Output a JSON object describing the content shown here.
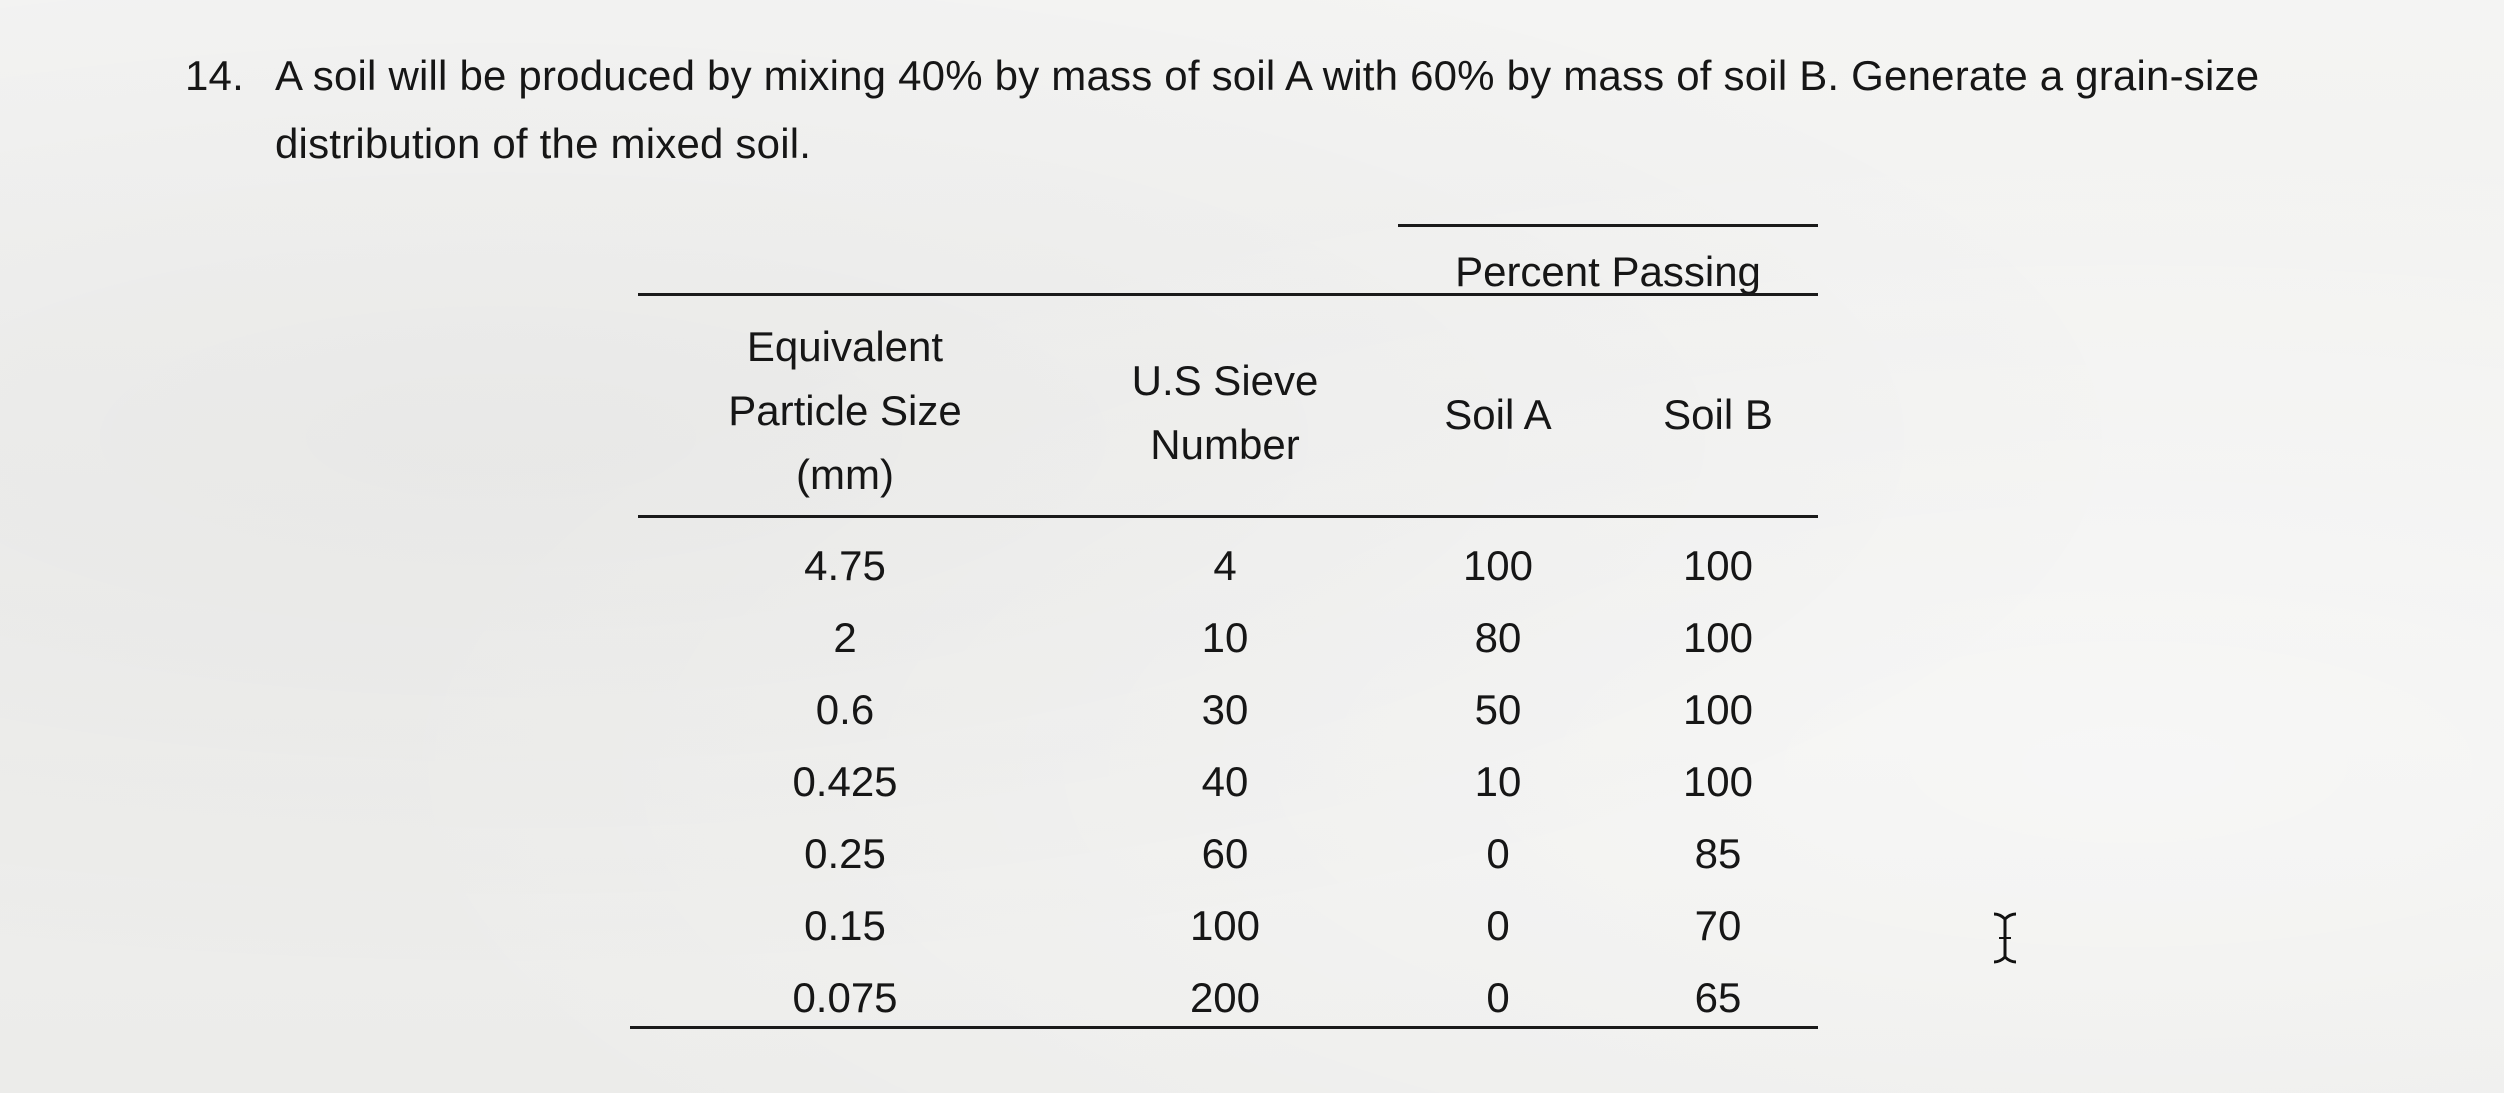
{
  "problem": {
    "number": "14.",
    "text": "A soil will be produced by mixing 40% by mass of soil A with 60% by mass of soil B. Generate a grain-size distribution of the mixed soil."
  },
  "table": {
    "group_header": "Percent Passing",
    "headers": {
      "size": [
        "Equivalent",
        "Particle Size",
        "(mm)"
      ],
      "sieve": [
        "U.S Sieve",
        "Number"
      ],
      "soil_a": "Soil A",
      "soil_b": "Soil B"
    },
    "rows": [
      {
        "size": "4.75",
        "sieve": "4",
        "a": "100",
        "b": "100"
      },
      {
        "size": "2",
        "sieve": "10",
        "a": "80",
        "b": "100"
      },
      {
        "size": "0.6",
        "sieve": "30",
        "a": "50",
        "b": "100"
      },
      {
        "size": "0.425",
        "sieve": "40",
        "a": "10",
        "b": "100"
      },
      {
        "size": "0.25",
        "sieve": "60",
        "a": "0",
        "b": "85"
      },
      {
        "size": "0.15",
        "sieve": "100",
        "a": "0",
        "b": "70"
      },
      {
        "size": "0.075",
        "sieve": "200",
        "a": "0",
        "b": "65"
      }
    ]
  },
  "icons": {
    "cursor": "text-cursor-icon"
  }
}
